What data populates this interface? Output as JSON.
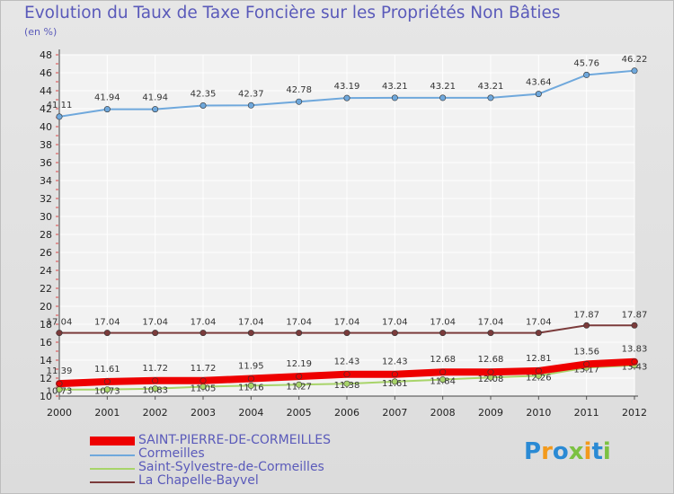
{
  "header": {
    "title": "Evolution du Taux de Taxe Foncière sur les Propriétés Non Bâties",
    "unit": "(en %)"
  },
  "chart_data": {
    "type": "line",
    "x": [
      "2000",
      "2001",
      "2002",
      "2003",
      "2004",
      "2005",
      "2006",
      "2007",
      "2008",
      "2009",
      "2010",
      "2011",
      "2012"
    ],
    "ylim": [
      10,
      48
    ],
    "yticks": [
      10,
      12,
      14,
      16,
      18,
      20,
      22,
      24,
      26,
      28,
      30,
      32,
      34,
      36,
      38,
      40,
      42,
      44,
      46,
      48
    ],
    "grid": true,
    "legend_position": "bottom-left",
    "series": [
      {
        "name": "Cormeilles",
        "color": "#6fa8dc",
        "values": [
          41.11,
          41.94,
          41.94,
          42.35,
          42.37,
          42.78,
          43.19,
          43.21,
          43.21,
          43.21,
          43.64,
          45.76,
          46.22
        ],
        "labels": [
          "41.11",
          "41.94",
          "41.94",
          "42.35",
          "42.37",
          "42.78",
          "43.19",
          "43.21",
          "43.21",
          "43.21",
          "43.64",
          "45.76",
          "46.22"
        ]
      },
      {
        "name": "La Chapelle-Bayvel",
        "color": "#7b3b3b",
        "values": [
          17.04,
          17.04,
          17.04,
          17.04,
          17.04,
          17.04,
          17.04,
          17.04,
          17.04,
          17.04,
          17.04,
          17.87,
          17.87
        ],
        "labels": [
          "17.04",
          "17.04",
          "17.04",
          "17.04",
          "17.04",
          "17.04",
          "17.04",
          "17.04",
          "17.04",
          "17.04",
          "17.04",
          "17.87",
          "17.87"
        ]
      },
      {
        "name": "Saint-Sylvestre-de-Cormeilles",
        "color": "#a8d46a",
        "values": [
          10.73,
          10.73,
          10.83,
          11.05,
          11.16,
          11.27,
          11.38,
          11.61,
          11.84,
          12.08,
          12.26,
          13.17,
          13.43
        ],
        "labels": [
          "10.73",
          "10.73",
          "10.83",
          "11.05",
          "11.16",
          "11.27",
          "11.38",
          "11.61",
          "11.84",
          "12.08",
          "12.26",
          "13.17",
          "13.43"
        ]
      },
      {
        "name": "SAINT-PIERRE-DE-CORMEILLES",
        "color": "#ee0000",
        "values": [
          11.39,
          11.61,
          11.72,
          11.72,
          11.95,
          12.19,
          12.43,
          12.43,
          12.68,
          12.68,
          12.81,
          13.56,
          13.83
        ],
        "labels": [
          "11.39",
          "11.61",
          "11.72",
          "11.72",
          "11.95",
          "12.19",
          "12.43",
          "12.43",
          "12.68",
          "12.68",
          "12.81",
          "13.56",
          "13.83"
        ]
      }
    ]
  },
  "legend": {
    "items": [
      {
        "label": "SAINT-PIERRE-DE-CORMEILLES",
        "color": "#ee0000",
        "key": "saint-pierre"
      },
      {
        "label": "Cormeilles",
        "color": "#6fa8dc",
        "key": "cormeilles"
      },
      {
        "label": "Saint-Sylvestre-de-Cormeilles",
        "color": "#a8d46a",
        "key": "saint-sylvestre"
      },
      {
        "label": "La Chapelle-Bayvel",
        "color": "#7b3b3b",
        "key": "la-chapelle"
      }
    ]
  },
  "logo": {
    "letters": [
      "P",
      "r",
      "o",
      "x",
      "i",
      "t",
      "i"
    ],
    "colors": [
      "#2a8ad4",
      "#f39a1c",
      "#2a8ad4",
      "#7cc142",
      "#f39a1c",
      "#2a8ad4",
      "#7cc142"
    ]
  }
}
